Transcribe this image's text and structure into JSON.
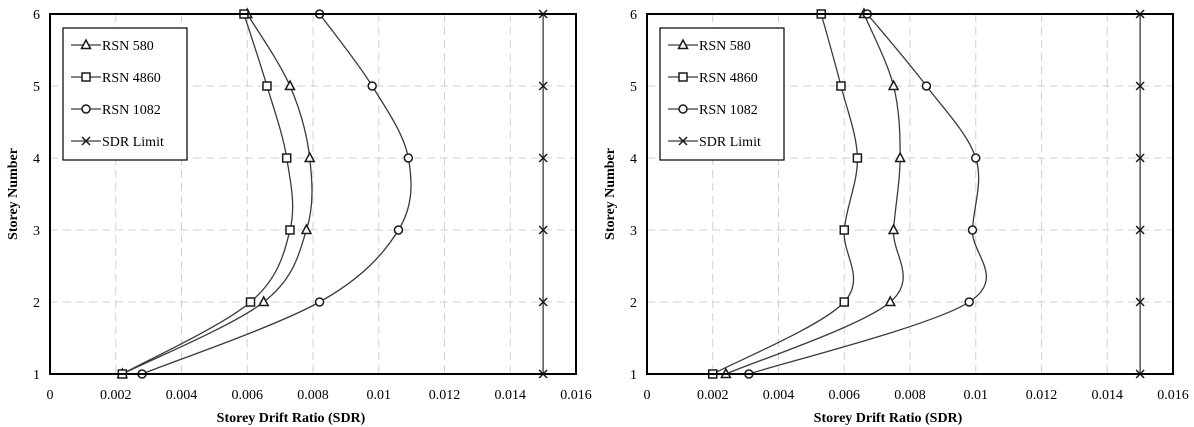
{
  "chart_data": [
    {
      "type": "line",
      "xlabel": "Storey Drift Ratio (SDR)",
      "ylabel": "Storey Number",
      "xlim": [
        0,
        0.016
      ],
      "ylim": [
        1,
        6
      ],
      "xticks": [
        "0",
        "0.002",
        "0.004",
        "0.006",
        "0.008",
        "0.01",
        "0.012",
        "0.014",
        "0.016"
      ],
      "yticks": [
        "1",
        "2",
        "3",
        "4",
        "5",
        "6"
      ],
      "grid": "dashed",
      "legend_position": "top-left",
      "series": [
        {
          "name": "RSN 580",
          "marker": "triangle",
          "x": [
            0.0022,
            0.0065,
            0.0078,
            0.0079,
            0.0073,
            0.006
          ],
          "y": [
            1,
            2,
            3,
            4,
            5,
            6
          ]
        },
        {
          "name": "RSN 4860",
          "marker": "square",
          "x": [
            0.0022,
            0.0061,
            0.0073,
            0.0072,
            0.0066,
            0.0059
          ],
          "y": [
            1,
            2,
            3,
            4,
            5,
            6
          ]
        },
        {
          "name": "RSN 1082",
          "marker": "circle",
          "x": [
            0.0028,
            0.0082,
            0.0106,
            0.0109,
            0.0098,
            0.0082
          ],
          "y": [
            1,
            2,
            3,
            4,
            5,
            6
          ]
        },
        {
          "name": "SDR Limit",
          "marker": "x",
          "x": [
            0.015,
            0.015,
            0.015,
            0.015,
            0.015,
            0.015
          ],
          "y": [
            1,
            2,
            3,
            4,
            5,
            6
          ]
        }
      ]
    },
    {
      "type": "line",
      "xlabel": "Storey Drift Ratio (SDR)",
      "ylabel": "Storey Number",
      "xlim": [
        0,
        0.016
      ],
      "ylim": [
        1,
        6
      ],
      "xticks": [
        "0",
        "0.002",
        "0.004",
        "0.006",
        "0.008",
        "0.01",
        "0.012",
        "0.014",
        "0.016"
      ],
      "yticks": [
        "1",
        "2",
        "3",
        "4",
        "5",
        "6"
      ],
      "grid": "dashed",
      "legend_position": "top-left",
      "series": [
        {
          "name": "RSN 580",
          "marker": "triangle",
          "x": [
            0.0024,
            0.0074,
            0.0075,
            0.0077,
            0.0075,
            0.0066
          ],
          "y": [
            1,
            2,
            3,
            4,
            5,
            6
          ]
        },
        {
          "name": "RSN 4860",
          "marker": "square",
          "x": [
            0.002,
            0.006,
            0.006,
            0.0064,
            0.0059,
            0.0053
          ],
          "y": [
            1,
            2,
            3,
            4,
            5,
            6
          ]
        },
        {
          "name": "RSN 1082",
          "marker": "circle",
          "x": [
            0.0031,
            0.0098,
            0.0099,
            0.01,
            0.0085,
            0.0067
          ],
          "y": [
            1,
            2,
            3,
            4,
            5,
            6
          ]
        },
        {
          "name": "SDR Limit",
          "marker": "x",
          "x": [
            0.015,
            0.015,
            0.015,
            0.015,
            0.015,
            0.015
          ],
          "y": [
            1,
            2,
            3,
            4,
            5,
            6
          ]
        }
      ]
    }
  ]
}
